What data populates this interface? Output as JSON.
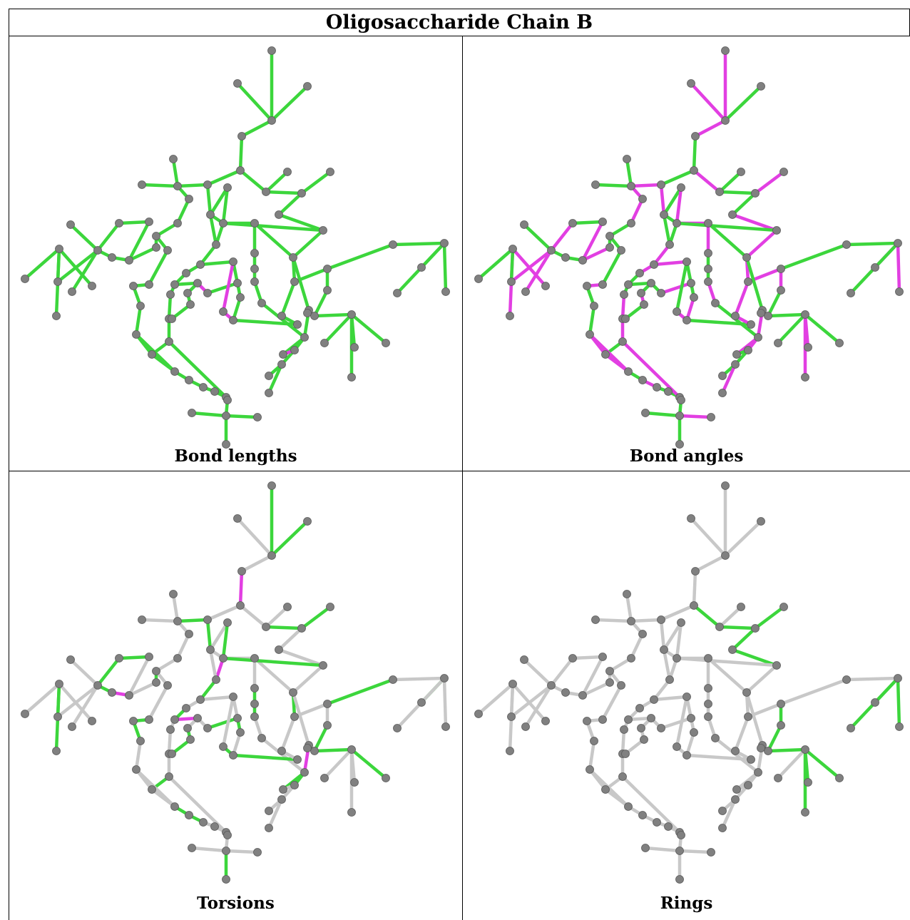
{
  "title": "Oligosaccharide Chain B",
  "colors": {
    "ok": "#3cd63c",
    "outlier": "#e23fe2",
    "neutral": "#c8c8c8",
    "atom": "#808080"
  },
  "panels": [
    {
      "label": "Bond lengths",
      "mode": "lengths"
    },
    {
      "label": "Bond angles",
      "mode": "angles"
    },
    {
      "label": "Torsions",
      "mode": "torsions"
    },
    {
      "label": "Rings",
      "mode": "rings"
    }
  ]
}
